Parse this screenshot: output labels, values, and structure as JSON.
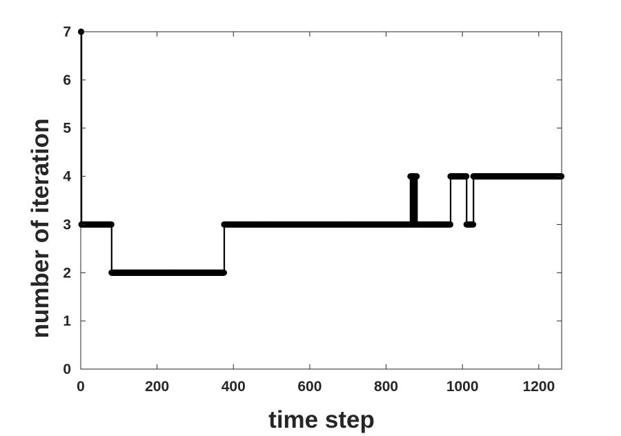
{
  "chart_data": {
    "type": "line",
    "title": "",
    "xlabel": "time step",
    "ylabel": "number of iteration",
    "xlim": [
      0,
      1260
    ],
    "ylim": [
      0,
      7
    ],
    "xticks": [
      0,
      200,
      400,
      600,
      800,
      1000,
      1200
    ],
    "yticks": [
      0,
      1,
      2,
      3,
      4,
      5,
      6,
      7
    ],
    "grid": false,
    "legend": "none",
    "colors": {
      "line": "#000000",
      "axis": "#262626",
      "background": "#ffffff"
    },
    "series": [
      {
        "segments": [
          {
            "x_start": 1,
            "x_end": 1,
            "value": 7
          },
          {
            "x_start": 2,
            "x_end": 80,
            "value": 3
          },
          {
            "x_start": 81,
            "x_end": 375,
            "value": 2
          },
          {
            "x_start": 376,
            "x_end": 862,
            "value": 3
          },
          {
            "x_start": 863,
            "x_end": 880,
            "value": 4,
            "alternating_with": 3
          },
          {
            "x_start": 881,
            "x_end": 968,
            "value": 3
          },
          {
            "x_start": 969,
            "x_end": 1010,
            "value": 4
          },
          {
            "x_start": 1011,
            "x_end": 1028,
            "value": 3
          },
          {
            "x_start": 1029,
            "x_end": 1259,
            "value": 4
          }
        ]
      }
    ]
  }
}
